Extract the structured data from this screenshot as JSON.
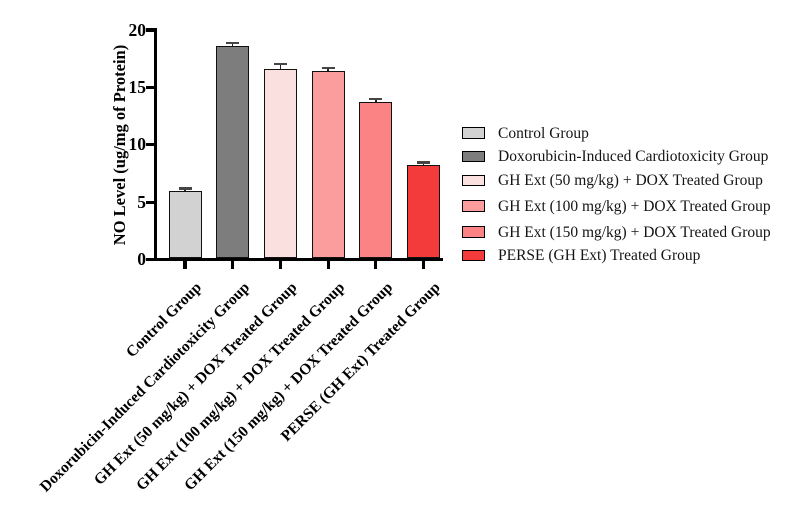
{
  "figure": {
    "background": "#ffffff"
  },
  "chart_data": {
    "type": "bar",
    "title": "",
    "xlabel": "",
    "ylabel": "NO Level (ug/mg of Protein)",
    "ylim": [
      0,
      20
    ],
    "yticks": [
      0,
      5,
      10,
      15,
      20
    ],
    "grid": false,
    "legend_position": "right",
    "axis_color": "#000000",
    "bar_border_color": "#111111",
    "error_bar_color": "#454545",
    "categories": [
      "Control Group",
      "Doxorubicin-Induced Cardiotoxicity Group",
      "GH Ext (50 mg/kg) + DOX Treated Group",
      "GH Ext (100 mg/kg) + DOX Treated Group",
      "GH Ext (150 mg/kg) + DOX Treated Group",
      "PERSE (GH Ext) Treated Group"
    ],
    "values": [
      6.0,
      18.6,
      16.6,
      16.4,
      13.7,
      8.2
    ],
    "errors": [
      0.2,
      0.25,
      0.45,
      0.3,
      0.3,
      0.25
    ],
    "colors": [
      "#D2D2D2",
      "#7D7D7D",
      "#FBE0E0",
      "#FB9D9D",
      "#FB8383",
      "#F43B3B"
    ],
    "legend_labels": [
      "Control Group",
      "Doxorubicin-Induced Cardiotoxicity Group",
      "GH Ext (50 mg/kg) + DOX Treated Group",
      "GH Ext (100 mg/kg) + DOX Treated Group",
      "GH Ext (150 mg/kg) + DOX Treated Group",
      "PERSE (GH Ext) Treated Group"
    ]
  }
}
